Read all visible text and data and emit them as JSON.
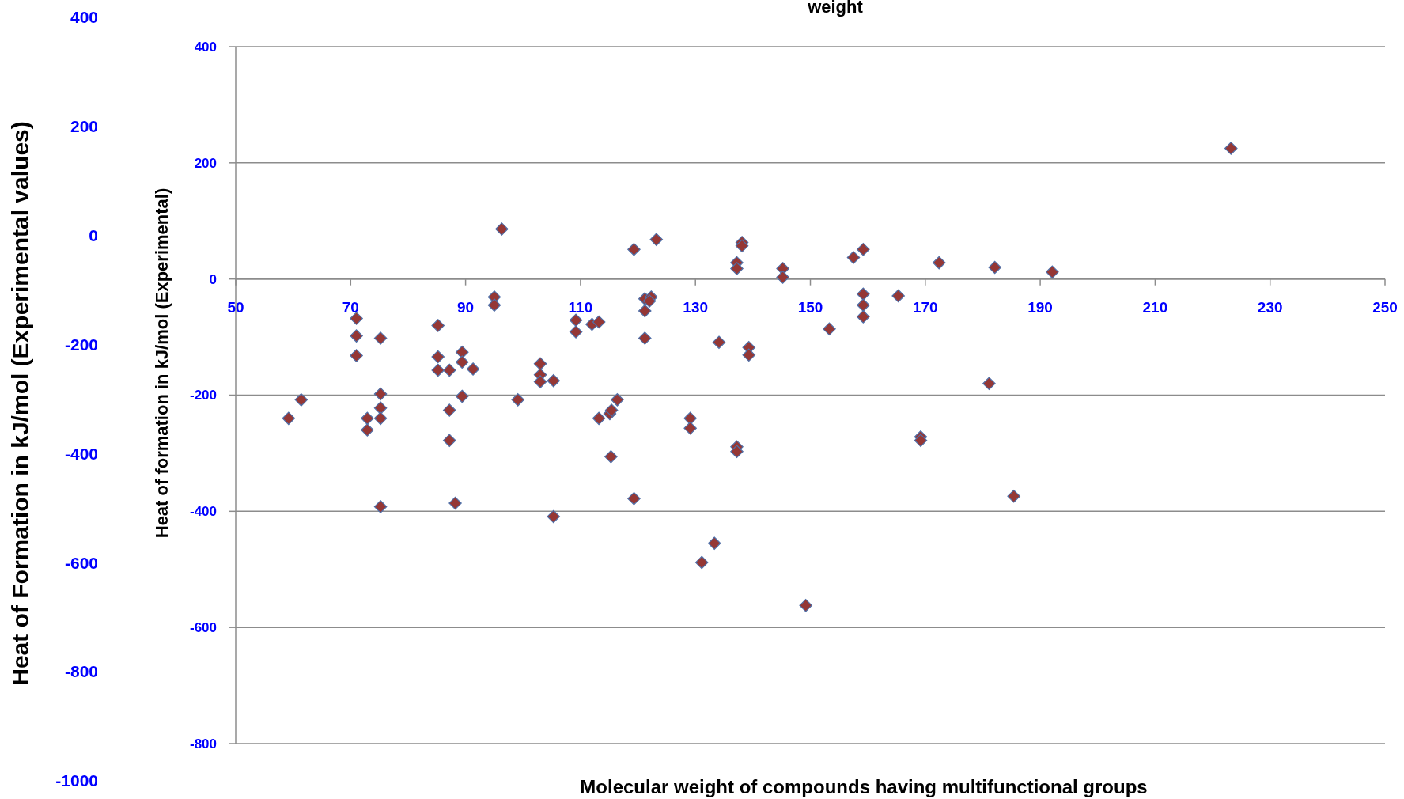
{
  "chart_data": {
    "type": "scatter",
    "title": "weight",
    "xlabel": "Molecular weight of compounds having multifunctional groups",
    "ylabel": "Heat of formation in kJ/mol (Experimental)",
    "y2label": "Heat of Formation in kJ/mol (Experimental values)",
    "xlim": [
      50,
      250
    ],
    "xticks": [
      50,
      70,
      90,
      110,
      130,
      150,
      170,
      190,
      210,
      230,
      250
    ],
    "ylim": [
      -800,
      400
    ],
    "yticks": [
      -800,
      -600,
      -400,
      -200,
      0,
      200,
      400
    ],
    "y2lim": [
      -1000,
      400
    ],
    "y2ticks": [
      -1000,
      -800,
      -600,
      -400,
      -200,
      0,
      200,
      400
    ],
    "grid": "y",
    "marker": "diamond",
    "series": [
      {
        "color": "#953735",
        "x": [
          59.2,
          61.4,
          71,
          71,
          71,
          72.9,
          72.9,
          75.2,
          75.2,
          75.2,
          75.2,
          75.2,
          85.2,
          85.2,
          85.2,
          87.2,
          87.2,
          87.2,
          88.2,
          89.4,
          89.4,
          89.4,
          91.3,
          95,
          95,
          96.3,
          99.1,
          103,
          103,
          103,
          105.3,
          105.3,
          109.2,
          109.2,
          112,
          113.2,
          113.2,
          115.1,
          115.4,
          115.3,
          116.4,
          119.3,
          119.3,
          123.2,
          121.2,
          122.3,
          122,
          121.2,
          121.2,
          129.1,
          129.1,
          131.1,
          133.3,
          134.1,
          137.2,
          137.2,
          138.1,
          138.1,
          137.2,
          137.2,
          139.3,
          139.3,
          145.2,
          145.2,
          149.2,
          153.3,
          157.5,
          159.2,
          159.2,
          159.2,
          159.2,
          165.3,
          169.2,
          169.2,
          172.4,
          181.1,
          182.1,
          185.4,
          192.1,
          223.2
        ],
        "values": [
          -240,
          -208,
          -68,
          -98,
          -132,
          -240,
          -260,
          -102,
          -198,
          -222,
          -240,
          -392,
          -80,
          -134,
          -157,
          -157,
          -226,
          -278,
          -386,
          -126,
          -143,
          -202,
          -155,
          -31,
          -45,
          86,
          -208,
          -146,
          -165,
          -177,
          -175,
          -409,
          -71,
          -91,
          -78,
          -74,
          -240,
          -232,
          -226,
          -306,
          -208,
          51,
          -378,
          68,
          -34,
          -31,
          -38,
          -55,
          -102,
          -240,
          -257,
          -488,
          -455,
          -109,
          28,
          18,
          63,
          57,
          -289,
          -297,
          -118,
          -131,
          18,
          3,
          -562,
          -86,
          37,
          51,
          -26,
          -45,
          -65,
          -29,
          -272,
          -278,
          28,
          -180,
          20,
          -374,
          12,
          225
        ]
      }
    ]
  }
}
